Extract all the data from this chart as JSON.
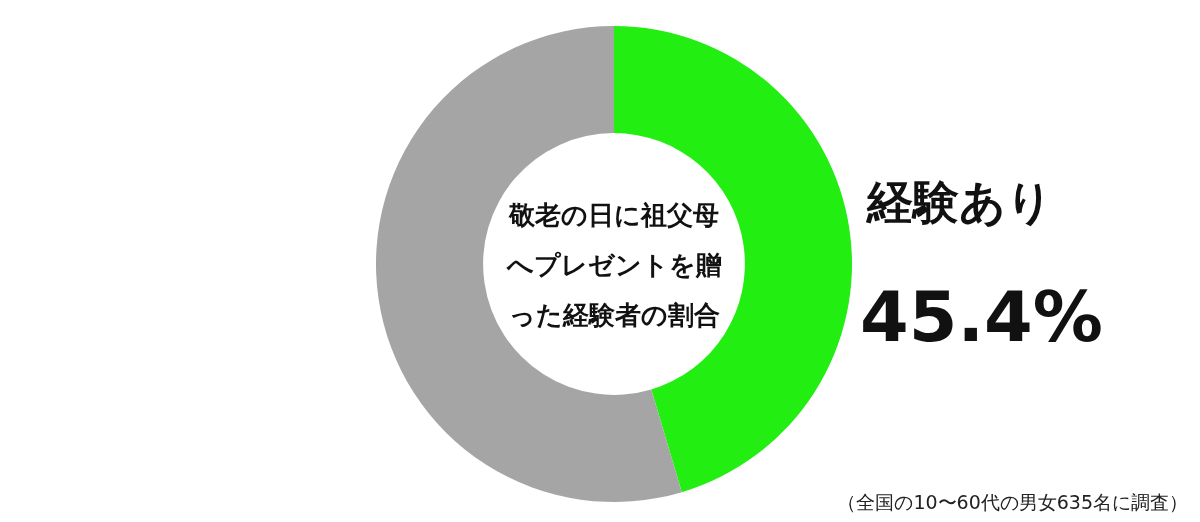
{
  "chart_data": {
    "type": "donut",
    "title": "敬老の日に祖父母へプレゼントを贈った経験者の割合",
    "categories": [
      "経験あり",
      null
    ],
    "values": [
      45.4,
      54.6
    ],
    "colors": [
      "#22ee11",
      "#a5a5a5"
    ],
    "value_labels": [
      "45.4%",
      null
    ],
    "legend": false,
    "annotations": [
      "（全国の10〜60代の男女635名に調査）"
    ]
  }
}
